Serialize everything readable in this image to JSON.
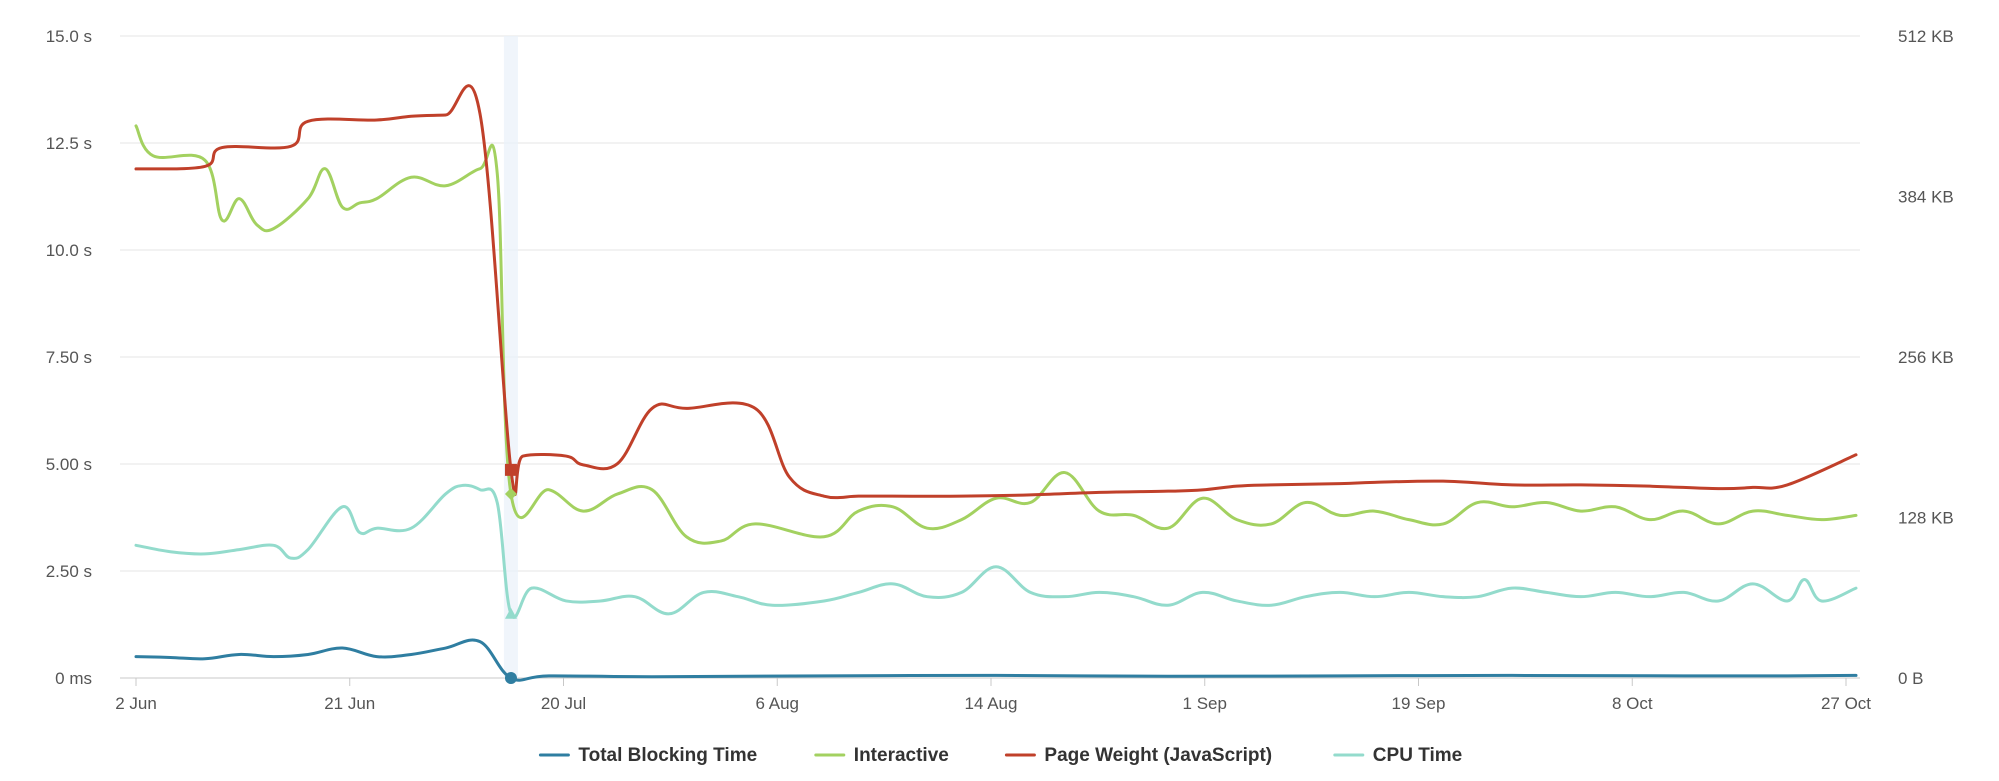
{
  "chart_data": {
    "type": "line",
    "title": "",
    "xlabel": "",
    "ylabel": "",
    "x_tick_labels": [
      "2 Jun",
      "21 Jun",
      "20 Jul",
      "6 Aug",
      "14 Aug",
      "1 Sep",
      "19 Sep",
      "8 Oct",
      "27 Oct"
    ],
    "left_axis": {
      "ylim": [
        0,
        15
      ],
      "ticks": [
        0,
        2.5,
        5,
        7.5,
        10,
        12.5,
        15
      ],
      "tick_labels": [
        "0 ms",
        "2.50 s",
        "5.00 s",
        "7.50 s",
        "10.0 s",
        "12.5 s",
        "15.0 s"
      ]
    },
    "right_axis": {
      "ylim": [
        0,
        512
      ],
      "ticks": [
        0,
        128,
        256,
        384,
        512
      ],
      "tick_labels": [
        "0 B",
        "128 KB",
        "256 KB",
        "384 KB",
        "512 KB"
      ]
    },
    "grid": true,
    "legend_position": "bottom",
    "crosshair_x": 21.8,
    "xlim": [
      0,
      100
    ],
    "series": [
      {
        "name": "Total Blocking Time",
        "axis": "left",
        "color": "#2f7ea1",
        "marker": "circle",
        "x": [
          0,
          2,
          4,
          6,
          8,
          10,
          12,
          14,
          16,
          18,
          20,
          21.8,
          24,
          30,
          40,
          50,
          60,
          70,
          80,
          90,
          96,
          100
        ],
        "y": [
          0.5,
          0.48,
          0.45,
          0.55,
          0.5,
          0.55,
          0.7,
          0.5,
          0.55,
          0.7,
          0.85,
          0.0,
          0.05,
          0.03,
          0.05,
          0.06,
          0.04,
          0.05,
          0.06,
          0.05,
          0.05,
          0.06
        ]
      },
      {
        "name": "Interactive",
        "axis": "left",
        "color": "#a3d160",
        "marker": "diamond",
        "x": [
          0,
          1,
          4,
          5,
          6,
          7,
          8,
          10,
          11,
          12,
          13,
          14,
          16,
          18,
          20,
          21,
          21.8,
          24,
          26,
          28,
          30,
          32,
          34,
          36,
          40,
          42,
          44,
          46,
          48,
          50,
          52,
          54,
          56,
          58,
          60,
          62,
          64,
          66,
          68,
          70,
          72,
          74,
          76,
          78,
          80,
          82,
          84,
          86,
          88,
          90,
          92,
          94,
          96,
          98,
          100
        ],
        "y": [
          12.9,
          12.2,
          12.1,
          10.7,
          11.2,
          10.6,
          10.5,
          11.2,
          11.9,
          11.0,
          11.1,
          11.2,
          11.7,
          11.5,
          11.9,
          11.8,
          4.3,
          4.4,
          3.9,
          4.3,
          4.4,
          3.3,
          3.2,
          3.6,
          3.3,
          3.9,
          4.0,
          3.5,
          3.7,
          4.2,
          4.1,
          4.8,
          3.9,
          3.8,
          3.5,
          4.2,
          3.7,
          3.6,
          4.1,
          3.8,
          3.9,
          3.7,
          3.6,
          4.1,
          4.0,
          4.1,
          3.9,
          4.0,
          3.7,
          3.9,
          3.6,
          3.9,
          3.8,
          3.7,
          3.8
        ]
      },
      {
        "name": "Page Weight (JavaScript)",
        "axis": "right",
        "color": "#c0402a",
        "marker": "square",
        "x": [
          0,
          4,
          5,
          9,
          10,
          14,
          16,
          18,
          20,
          21.8,
          22.5,
          25,
          26,
          28,
          30,
          32,
          36,
          38,
          40,
          42,
          44,
          48,
          52,
          56,
          60,
          62,
          64,
          66,
          70,
          72,
          76,
          80,
          84,
          88,
          92,
          94,
          96,
          100
        ],
        "y": [
          406,
          408,
          423,
          424,
          444,
          445,
          448,
          449,
          450,
          166,
          177,
          177,
          170,
          171,
          215,
          215,
          215,
          160,
          145,
          145,
          145,
          145,
          146,
          148,
          149,
          150,
          153,
          154,
          155,
          156,
          157,
          154,
          154,
          153,
          151,
          152,
          154,
          178
        ]
      },
      {
        "name": "CPU Time",
        "axis": "left",
        "color": "#93dbcc",
        "marker": "triangle",
        "x": [
          0,
          2,
          4,
          6,
          8,
          9,
          10,
          12,
          13,
          14,
          16,
          18,
          19,
          20,
          21,
          21.8,
          23,
          25,
          27,
          29,
          31,
          33,
          35,
          37,
          40,
          42,
          44,
          46,
          48,
          50,
          52,
          54,
          56,
          58,
          60,
          62,
          64,
          66,
          68,
          70,
          72,
          74,
          76,
          78,
          80,
          82,
          84,
          86,
          88,
          90,
          92,
          94,
          96,
          97,
          98,
          100
        ],
        "y": [
          3.1,
          2.95,
          2.9,
          3.0,
          3.1,
          2.8,
          3.0,
          4.0,
          3.4,
          3.5,
          3.5,
          4.3,
          4.5,
          4.4,
          4.1,
          1.5,
          2.1,
          1.8,
          1.8,
          1.9,
          1.5,
          2.0,
          1.9,
          1.7,
          1.8,
          2.0,
          2.2,
          1.9,
          2.0,
          2.6,
          2.0,
          1.9,
          2.0,
          1.9,
          1.7,
          2.0,
          1.8,
          1.7,
          1.9,
          2.0,
          1.9,
          2.0,
          1.9,
          1.9,
          2.1,
          2.0,
          1.9,
          2.0,
          1.9,
          2.0,
          1.8,
          2.2,
          1.8,
          2.3,
          1.8,
          2.1
        ]
      }
    ]
  }
}
